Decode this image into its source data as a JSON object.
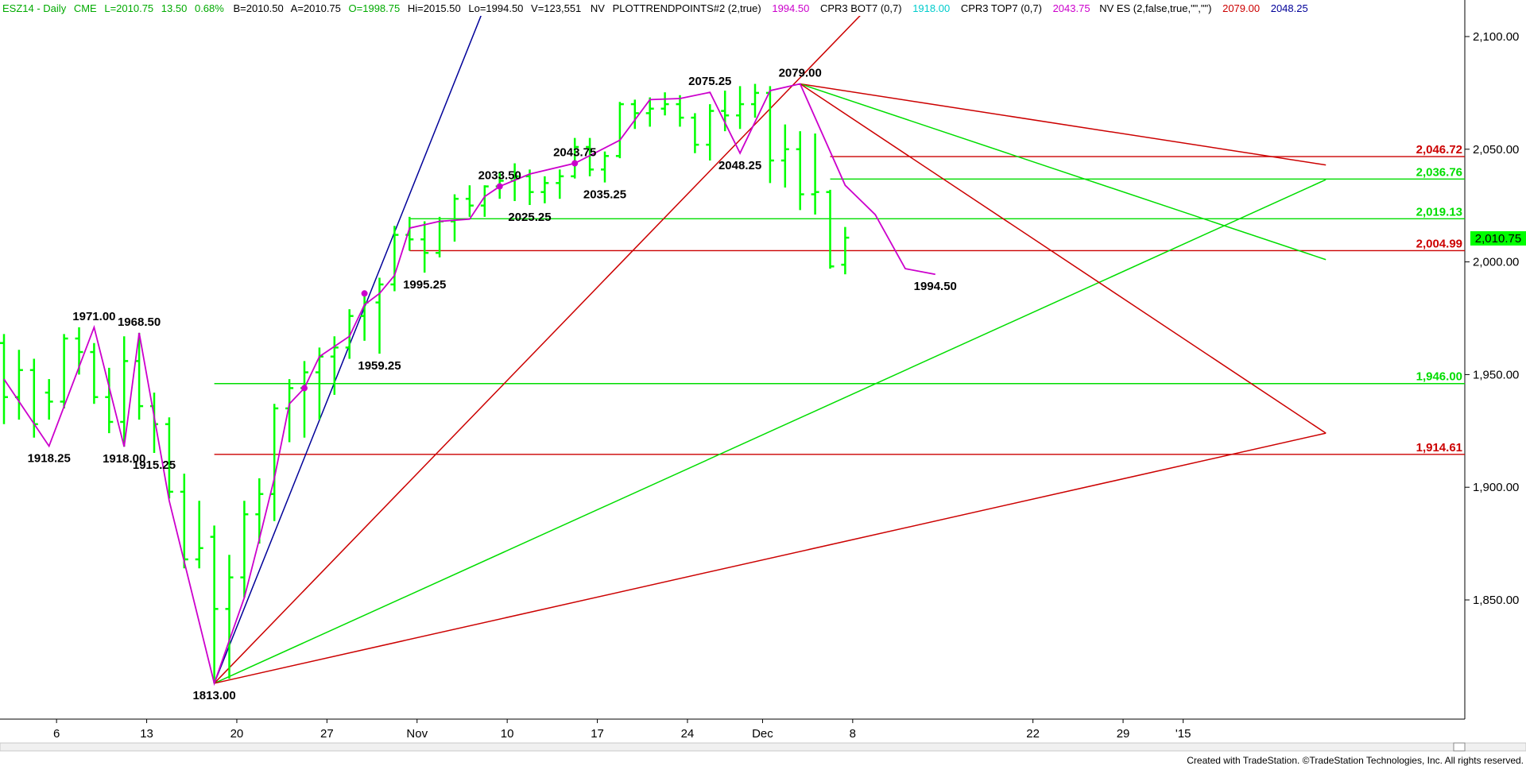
{
  "header": {
    "symbol": "ESZ14 - Daily",
    "exchange": "CME",
    "last": "L=2010.75",
    "change": "13.50",
    "change_pct": "0.68%",
    "bid": "B=2010.50",
    "ask": "A=2010.75",
    "open": "O=1998.75",
    "high": "Hi=2015.50",
    "low": "Lo=1994.50",
    "volume": "V=123,551",
    "nv": "NV",
    "plot_study": "PLOTTRENDPOINTS#2 (2,true)",
    "plot_value": "1994.50",
    "bot_study": "CPR3 BOT7 (0,7)",
    "bot_value": "1918.00",
    "top_study": "CPR3 TOP7 (0,7)",
    "top_value": "2043.75",
    "nv_study": "NV ES (2,false,true,\"\",\"\")",
    "nv_value1": "2079.00",
    "nv_value2": "2048.25"
  },
  "footer": {
    "credit": "Created with TradeStation. ©TradeStation Technologies, Inc. All rights reserved."
  },
  "colors": {
    "bars": "#00ff00",
    "trend_line": "#cc00cc",
    "green_line": "#00dd00",
    "red_line": "#cc0000",
    "blue_line": "#000099",
    "header_green": "#00aa00",
    "header_magenta": "#cc00cc",
    "header_cyan": "#00cccc",
    "header_red": "#cc0000",
    "header_navy": "#000099",
    "current_price_bg": "#00ff00"
  },
  "chart_data": {
    "type": "ohlc_bar",
    "title": "ESZ14 - Daily",
    "y_ticks": [
      1850,
      1900,
      1950,
      2000,
      2050,
      2100
    ],
    "y_tick_labels": [
      "1,850.00",
      "1,900.00",
      "1,950.00",
      "2,000.00",
      "2,050.00",
      "2,100.00"
    ],
    "ylim": [
      1802,
      2110
    ],
    "x_ticks": [
      "6",
      "13",
      "20",
      "27",
      "Nov",
      "10",
      "17",
      "24",
      "Dec",
      "8",
      "22",
      "29",
      "'15"
    ],
    "current_price": "2,010.75",
    "bars": [
      {
        "o": 1964,
        "h": 1968,
        "l": 1928,
        "c": 1940
      },
      {
        "o": 1940,
        "h": 1961,
        "l": 1930,
        "c": 1952
      },
      {
        "o": 1952,
        "h": 1957,
        "l": 1922,
        "c": 1928
      },
      {
        "o": 1942,
        "h": 1948,
        "l": 1930,
        "c": 1938
      },
      {
        "o": 1938,
        "h": 1968,
        "l": 1935,
        "c": 1966
      },
      {
        "o": 1966,
        "h": 1971,
        "l": 1950,
        "c": 1960
      },
      {
        "o": 1960,
        "h": 1964,
        "l": 1937,
        "c": 1940
      },
      {
        "o": 1940,
        "h": 1953,
        "l": 1924,
        "c": 1929
      },
      {
        "o": 1929,
        "h": 1967,
        "l": 1918,
        "c": 1956
      },
      {
        "o": 1956,
        "h": 1968.5,
        "l": 1930,
        "c": 1936
      },
      {
        "o": 1936,
        "h": 1942,
        "l": 1915.25,
        "c": 1928
      },
      {
        "o": 1928,
        "h": 1931,
        "l": 1895,
        "c": 1898
      },
      {
        "o": 1898,
        "h": 1906,
        "l": 1864,
        "c": 1868
      },
      {
        "o": 1868,
        "h": 1894,
        "l": 1864,
        "c": 1873
      },
      {
        "o": 1878,
        "h": 1883,
        "l": 1813,
        "c": 1846
      },
      {
        "o": 1846,
        "h": 1870,
        "l": 1815,
        "c": 1860
      },
      {
        "o": 1860,
        "h": 1894,
        "l": 1851,
        "c": 1888
      },
      {
        "o": 1888,
        "h": 1904,
        "l": 1875,
        "c": 1897
      },
      {
        "o": 1897,
        "h": 1937,
        "l": 1885,
        "c": 1935
      },
      {
        "o": 1935,
        "h": 1948,
        "l": 1920,
        "c": 1944
      },
      {
        "o": 1944,
        "h": 1956,
        "l": 1922,
        "c": 1951
      },
      {
        "o": 1951,
        "h": 1962,
        "l": 1930,
        "c": 1958
      },
      {
        "o": 1958,
        "h": 1967,
        "l": 1941,
        "c": 1962
      },
      {
        "o": 1962,
        "h": 1979,
        "l": 1957,
        "c": 1976
      },
      {
        "o": 1976,
        "h": 1986,
        "l": 1965,
        "c": 1982
      },
      {
        "o": 1982,
        "h": 1993,
        "l": 1959.25,
        "c": 1990
      },
      {
        "o": 1990,
        "h": 2016,
        "l": 1987,
        "c": 2012
      },
      {
        "o": 2012,
        "h": 2020,
        "l": 2005,
        "c": 2010
      },
      {
        "o": 2010,
        "h": 2018,
        "l": 1995.25,
        "c": 2004
      },
      {
        "o": 2004,
        "h": 2020,
        "l": 2002,
        "c": 2018
      },
      {
        "o": 2018,
        "h": 2030,
        "l": 2009,
        "c": 2028
      },
      {
        "o": 2028,
        "h": 2034,
        "l": 2020,
        "c": 2025
      },
      {
        "o": 2025,
        "h": 2034,
        "l": 2020,
        "c": 2033.5
      },
      {
        "o": 2033.5,
        "h": 2040,
        "l": 2028,
        "c": 2036
      },
      {
        "o": 2036,
        "h": 2043.75,
        "l": 2027,
        "c": 2038
      },
      {
        "o": 2038,
        "h": 2041,
        "l": 2025.25,
        "c": 2031
      },
      {
        "o": 2031,
        "h": 2038,
        "l": 2026,
        "c": 2035
      },
      {
        "o": 2035,
        "h": 2041,
        "l": 2028,
        "c": 2038
      },
      {
        "o": 2038,
        "h": 2055,
        "l": 2037,
        "c": 2051
      },
      {
        "o": 2051,
        "h": 2055,
        "l": 2038,
        "c": 2041
      },
      {
        "o": 2041,
        "h": 2049,
        "l": 2035.25,
        "c": 2047
      },
      {
        "o": 2047,
        "h": 2071,
        "l": 2046,
        "c": 2070
      },
      {
        "o": 2070,
        "h": 2072,
        "l": 2059,
        "c": 2066
      },
      {
        "o": 2066,
        "h": 2073,
        "l": 2060,
        "c": 2068
      },
      {
        "o": 2068,
        "h": 2075.25,
        "l": 2065,
        "c": 2070
      },
      {
        "o": 2070,
        "h": 2074,
        "l": 2060,
        "c": 2064
      },
      {
        "o": 2064,
        "h": 2066,
        "l": 2048.25,
        "c": 2052
      },
      {
        "o": 2052,
        "h": 2070,
        "l": 2045,
        "c": 2067
      },
      {
        "o": 2067,
        "h": 2076,
        "l": 2058,
        "c": 2065
      },
      {
        "o": 2065,
        "h": 2078,
        "l": 2059,
        "c": 2070
      },
      {
        "o": 2070,
        "h": 2079,
        "l": 2064,
        "c": 2075
      },
      {
        "o": 2075,
        "h": 2078,
        "l": 2035,
        "c": 2045
      },
      {
        "o": 2045,
        "h": 2061,
        "l": 2033,
        "c": 2050
      },
      {
        "o": 2050,
        "h": 2058,
        "l": 2023,
        "c": 2030
      },
      {
        "o": 2030,
        "h": 2057,
        "l": 2021,
        "c": 2031
      },
      {
        "o": 2031,
        "h": 2032,
        "l": 1997,
        "c": 1998
      },
      {
        "o": 1998.75,
        "h": 2015.5,
        "l": 1994.5,
        "c": 2010.75
      }
    ],
    "trend_points": [
      {
        "i": 0,
        "v": 1948
      },
      {
        "i": 3,
        "v": 1918.25
      },
      {
        "i": 6,
        "v": 1971
      },
      {
        "i": 8,
        "v": 1918
      },
      {
        "i": 9,
        "v": 1968.5
      },
      {
        "i": 11,
        "v": 1894
      },
      {
        "i": 14,
        "v": 1813
      },
      {
        "i": 16,
        "v": 1851
      },
      {
        "i": 17,
        "v": 1877
      },
      {
        "i": 18,
        "v": 1904
      },
      {
        "i": 19,
        "v": 1937
      },
      {
        "i": 20,
        "v": 1944
      },
      {
        "i": 21,
        "v": 1958
      },
      {
        "i": 23,
        "v": 1967
      },
      {
        "i": 24,
        "v": 1981
      },
      {
        "i": 25,
        "v": 1986
      },
      {
        "i": 26,
        "v": 1994
      },
      {
        "i": 27,
        "v": 2015
      },
      {
        "i": 29,
        "v": 2018
      },
      {
        "i": 31,
        "v": 2019
      },
      {
        "i": 32,
        "v": 2029
      },
      {
        "i": 33,
        "v": 2033.5
      },
      {
        "i": 35,
        "v": 2039
      },
      {
        "i": 38,
        "v": 2043.75
      },
      {
        "i": 41,
        "v": 2054
      },
      {
        "i": 43,
        "v": 2072
      },
      {
        "i": 45,
        "v": 2072.5
      },
      {
        "i": 47,
        "v": 2075.25
      },
      {
        "i": 49,
        "v": 2048.25
      },
      {
        "i": 51,
        "v": 2076
      },
      {
        "i": 53,
        "v": 2079
      },
      {
        "i": 56,
        "v": 2034
      },
      {
        "i": 58,
        "v": 2021
      },
      {
        "i": 60,
        "v": 1997
      },
      {
        "i": 62,
        "v": 1994.5
      }
    ],
    "trend_dots": [
      {
        "i": 20,
        "v": 1944
      },
      {
        "i": 24,
        "v": 1986
      },
      {
        "i": 33,
        "v": 2033.5
      },
      {
        "i": 38,
        "v": 2043.75
      }
    ],
    "pivot_labels": [
      {
        "text": "1971.00",
        "i": 6,
        "v": 1971,
        "pos": "above"
      },
      {
        "text": "1968.50",
        "i": 9,
        "v": 1968.5,
        "pos": "above"
      },
      {
        "text": "1918.25",
        "i": 3,
        "v": 1918.25,
        "pos": "below"
      },
      {
        "text": "1918.00",
        "i": 8,
        "v": 1918,
        "pos": "below"
      },
      {
        "text": "1915.25",
        "i": 10,
        "v": 1915.25,
        "pos": "below"
      },
      {
        "text": "1813.00",
        "i": 14,
        "v": 1813,
        "pos": "below"
      },
      {
        "text": "1959.25",
        "i": 25,
        "v": 1959.25,
        "pos": "below"
      },
      {
        "text": "1995.25",
        "i": 28,
        "v": 1995.25,
        "pos": "below"
      },
      {
        "text": "2033.50",
        "i": 33,
        "v": 2033.5,
        "pos": "above"
      },
      {
        "text": "2043.75",
        "i": 38,
        "v": 2043.75,
        "pos": "above"
      },
      {
        "text": "2025.25",
        "i": 35,
        "v": 2025.25,
        "pos": "below"
      },
      {
        "text": "2035.25",
        "i": 40,
        "v": 2035.25,
        "pos": "below"
      },
      {
        "text": "2075.25",
        "i": 47,
        "v": 2075.25,
        "pos": "above"
      },
      {
        "text": "2048.25",
        "i": 49,
        "v": 2048.25,
        "pos": "below"
      },
      {
        "text": "2079.00",
        "i": 53,
        "v": 2079,
        "pos": "above"
      },
      {
        "text": "1994.50",
        "i": 62,
        "v": 1994.5,
        "pos": "below"
      }
    ],
    "levels": [
      {
        "value": 2046.72,
        "label": "2,046.72",
        "color": "red",
        "start_i": 55
      },
      {
        "value": 2036.76,
        "label": "2,036.76",
        "color": "green",
        "start_i": 55
      },
      {
        "value": 2019.13,
        "label": "2,019.13",
        "color": "green",
        "start_i": 27
      },
      {
        "value": 2004.99,
        "label": "2,004.99",
        "color": "red",
        "start_i": 27
      },
      {
        "value": 1946.0,
        "label": "1,946.00",
        "color": "green",
        "start_i": 14
      },
      {
        "value": 1914.61,
        "label": "1,914.61",
        "color": "red",
        "start_i": 14
      }
    ],
    "fan_lines": [
      {
        "from": {
          "i": 14,
          "v": 1813
        },
        "to": {
          "i": 33,
          "v": 2130
        },
        "color": "blue"
      },
      {
        "from": {
          "i": 14,
          "v": 1813
        },
        "to": {
          "i": 60,
          "v": 2130
        },
        "color": "red"
      },
      {
        "from": {
          "i": 14,
          "v": 1813
        },
        "to": {
          "i": 88,
          "v": 2036.5
        },
        "color": "green"
      },
      {
        "from": {
          "i": 14,
          "v": 1813
        },
        "to": {
          "i": 88,
          "v": 1924
        },
        "color": "red"
      },
      {
        "from": {
          "i": 53,
          "v": 2079
        },
        "to": {
          "i": 88,
          "v": 2043
        },
        "color": "red"
      },
      {
        "from": {
          "i": 53,
          "v": 2079
        },
        "to": {
          "i": 88,
          "v": 2001
        },
        "color": "green"
      },
      {
        "from": {
          "i": 53,
          "v": 2079
        },
        "to": {
          "i": 88,
          "v": 1924
        },
        "color": "red"
      }
    ]
  }
}
